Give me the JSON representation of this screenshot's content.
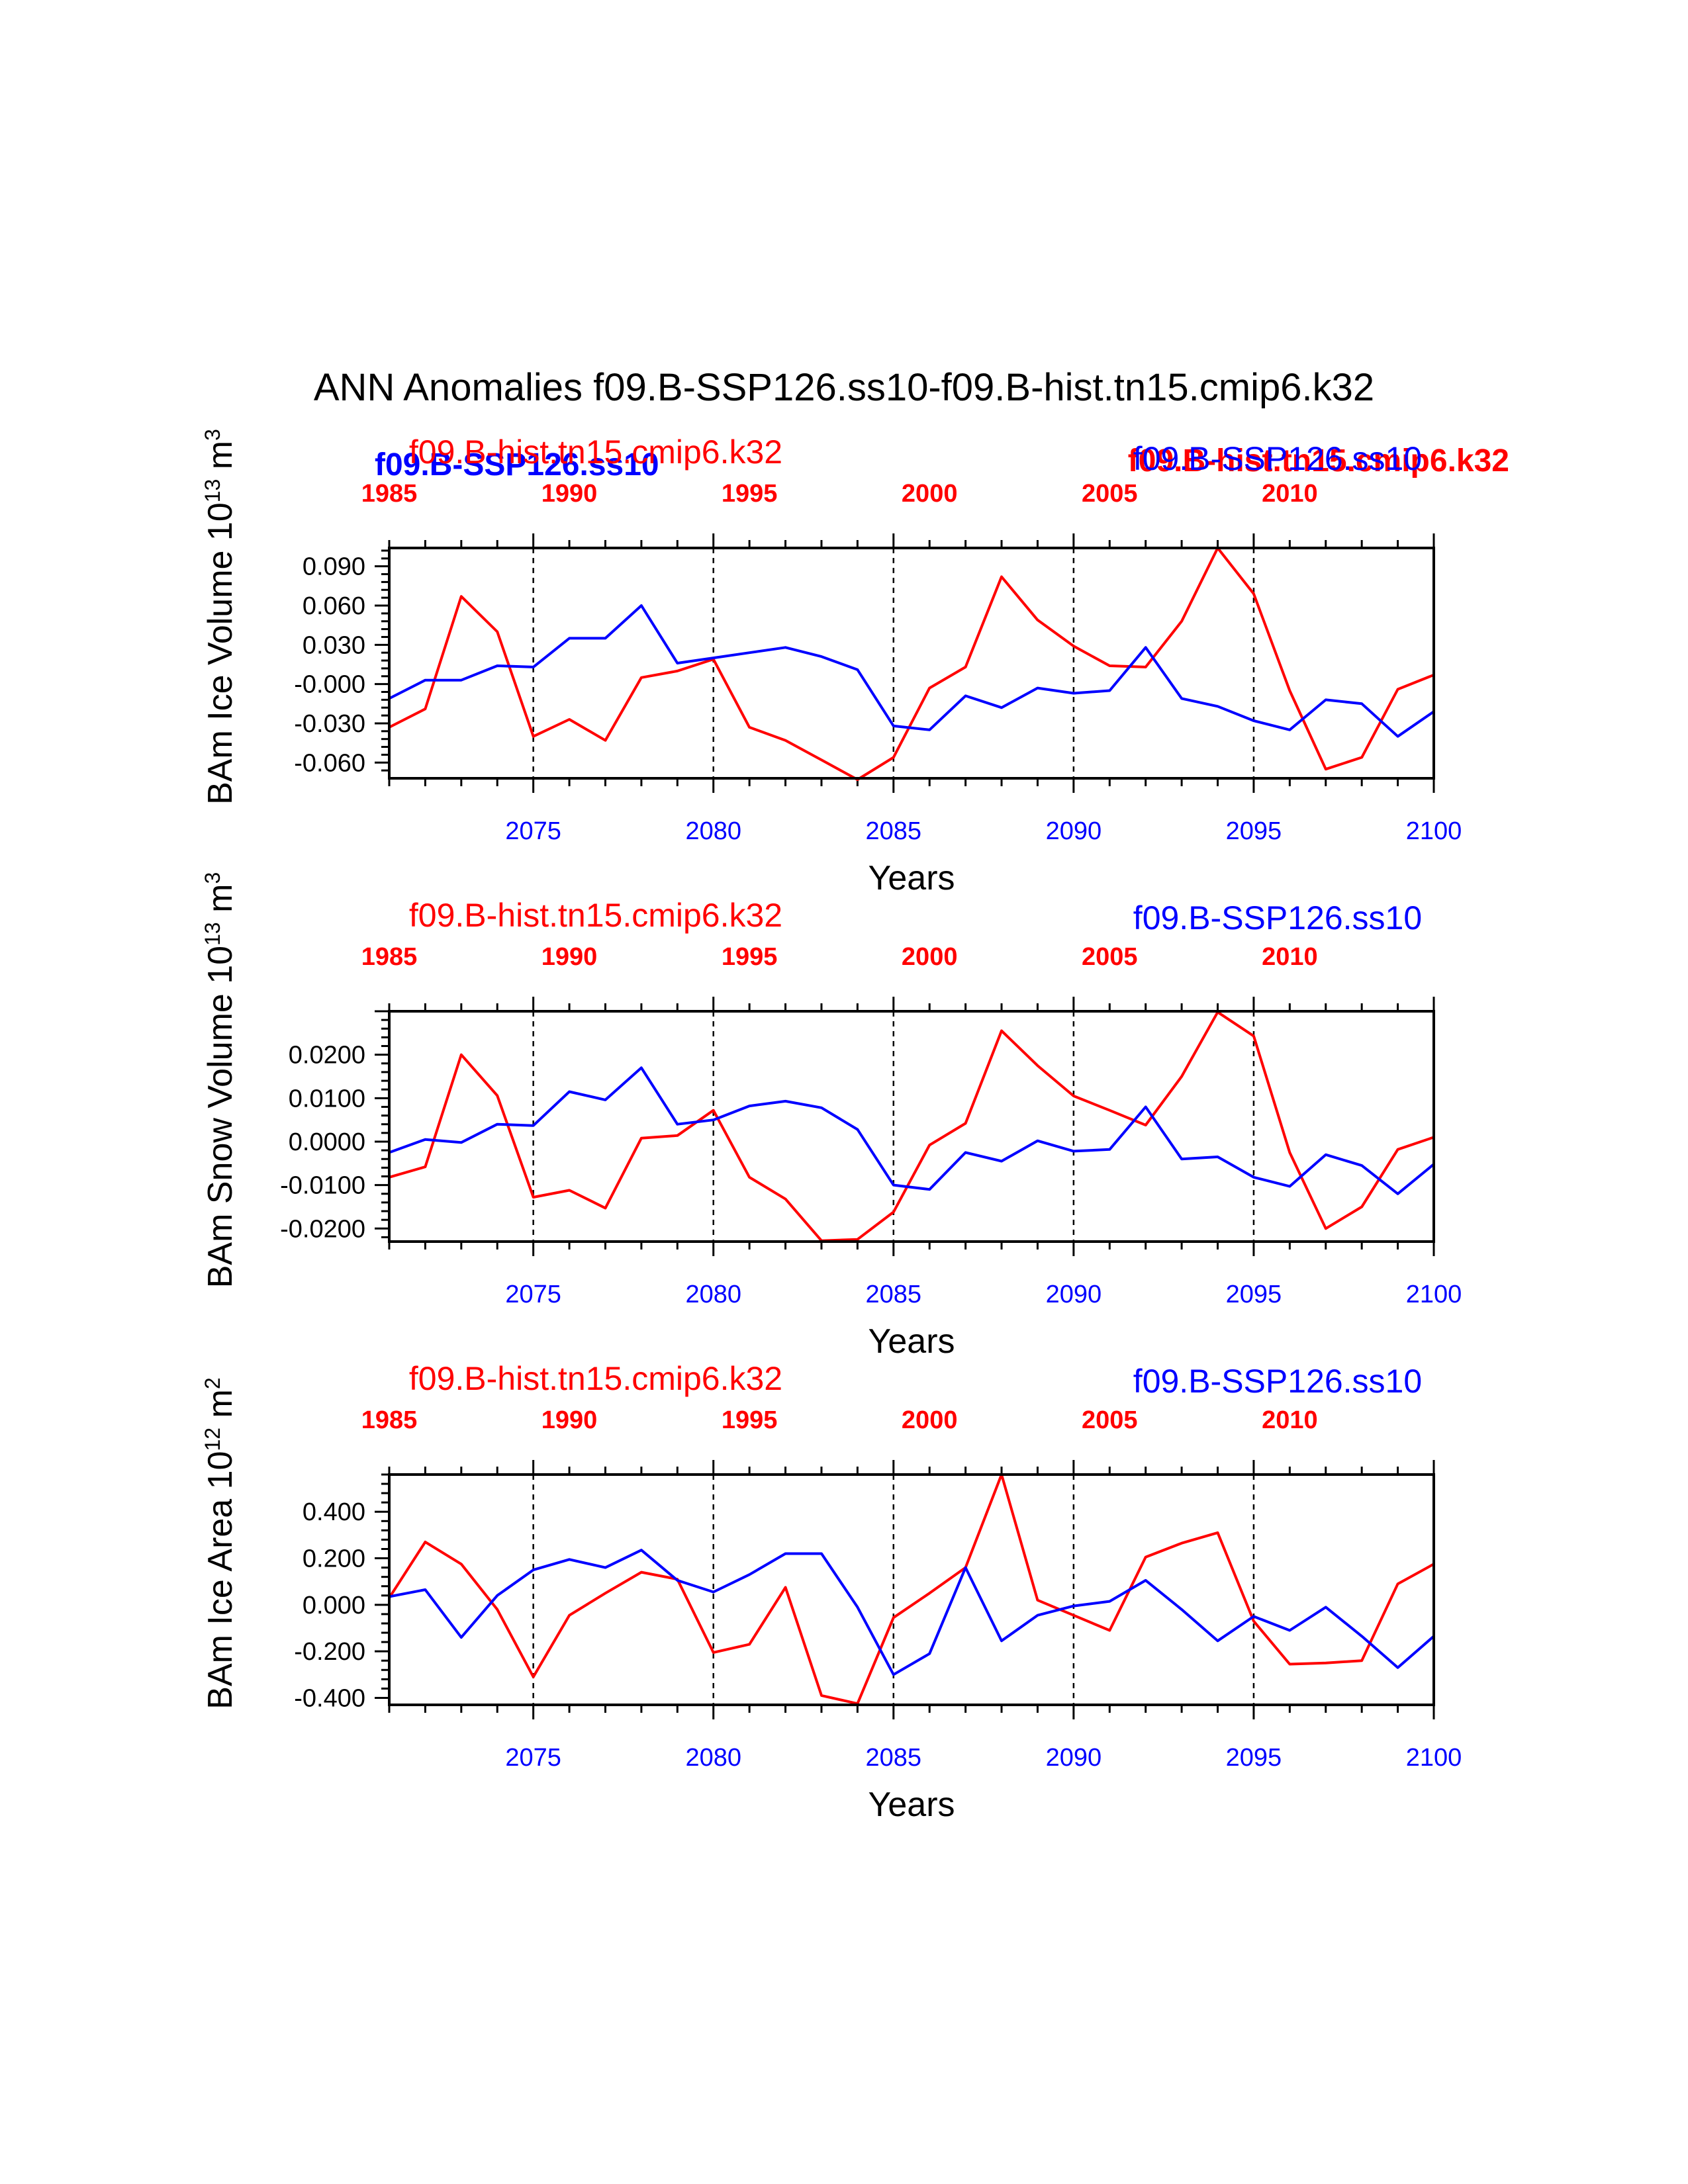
{
  "figure": {
    "title": "ANN Anomalies f09.B-SSP126.ss10-f09.B-hist.tn15.cmip6.k32"
  },
  "colors": {
    "hist": "#ff0000",
    "ssp": "#0000ff"
  },
  "overlap_labels": {
    "left_blue_bold": "f09.B-SSP126.ss10",
    "right_red_bold": "f09.B-hist.tn15.cmip6.k32"
  },
  "chart_data": [
    {
      "type": "line",
      "title_left": "f09.B-hist.tn15.cmip6.k32",
      "title_right": "f09.B-SSP126.ss10",
      "ylabel": "BAm Ice Volume 10",
      "ylabel_exp": "13",
      "ylabel_unit": " m",
      "ylabel_unit_exp": "3",
      "xlabel": "Years",
      "xlim": [
        2071,
        2100
      ],
      "ylim": [
        -0.072,
        0.104
      ],
      "yticks": [
        0.09,
        0.06,
        0.03,
        0.0,
        -0.03,
        -0.06
      ],
      "ytick_labels": [
        "0.090",
        "0.060",
        "0.030",
        "-0.000",
        "-0.030",
        "-0.060"
      ],
      "bottom_ticks": [
        2075,
        2080,
        2085,
        2090,
        2095,
        2100
      ],
      "top_ticks": [
        "1985",
        "1990",
        "1995",
        "2000",
        "2005",
        "2010"
      ],
      "x": [
        2071,
        2072,
        2073,
        2074,
        2075,
        2076,
        2077,
        2078,
        2079,
        2080,
        2081,
        2082,
        2083,
        2084,
        2085,
        2086,
        2087,
        2088,
        2089,
        2090,
        2091,
        2092,
        2093,
        2094,
        2095,
        2096,
        2097,
        2098,
        2099,
        2100
      ],
      "series": [
        {
          "name": "f09.B-hist.tn15.cmip6.k32",
          "color": "#ff0000",
          "values": [
            -0.033,
            -0.019,
            0.067,
            0.04,
            -0.04,
            -0.027,
            -0.043,
            0.005,
            0.01,
            0.019,
            -0.033,
            -0.043,
            -0.058,
            -0.073,
            -0.056,
            -0.003,
            0.013,
            0.082,
            0.049,
            0.029,
            0.014,
            0.013,
            0.048,
            0.104,
            0.069,
            -0.005,
            -0.065,
            -0.056,
            -0.004,
            0.007
          ]
        },
        {
          "name": "f09.B-SSP126.ss10",
          "color": "#0000ff",
          "values": [
            -0.011,
            0.003,
            0.003,
            0.014,
            0.013,
            0.035,
            0.035,
            0.06,
            0.016,
            0.02,
            0.024,
            0.028,
            0.021,
            0.011,
            -0.032,
            -0.035,
            -0.009,
            -0.018,
            -0.003,
            -0.007,
            -0.005,
            0.028,
            -0.011,
            -0.017,
            -0.028,
            -0.035,
            -0.012,
            -0.015,
            -0.04,
            -0.021
          ]
        }
      ]
    },
    {
      "type": "line",
      "title_left": "f09.B-hist.tn15.cmip6.k32",
      "title_right": "f09.B-SSP126.ss10",
      "ylabel": "BAm Snow Volume 10",
      "ylabel_exp": "13",
      "ylabel_unit": " m",
      "ylabel_unit_exp": "3",
      "xlabel": "Years",
      "xlim": [
        2071,
        2100
      ],
      "ylim": [
        -0.023,
        0.03
      ],
      "yticks": [
        0.02,
        0.01,
        0.0,
        -0.01,
        -0.02
      ],
      "ytick_labels": [
        "0.0200",
        "0.0100",
        "0.0000",
        "-0.0100",
        "-0.0200"
      ],
      "bottom_ticks": [
        2075,
        2080,
        2085,
        2090,
        2095,
        2100
      ],
      "top_ticks": [
        "1985",
        "1990",
        "1995",
        "2000",
        "2005",
        "2010"
      ],
      "x": [
        2071,
        2072,
        2073,
        2074,
        2075,
        2076,
        2077,
        2078,
        2079,
        2080,
        2081,
        2082,
        2083,
        2084,
        2085,
        2086,
        2087,
        2088,
        2089,
        2090,
        2091,
        2092,
        2093,
        2094,
        2095,
        2096,
        2097,
        2098,
        2099,
        2100
      ],
      "series": [
        {
          "name": "f09.B-hist.tn15.cmip6.k32",
          "color": "#ff0000",
          "values": [
            -0.0082,
            -0.0058,
            0.02,
            0.0106,
            -0.0128,
            -0.0112,
            -0.0153,
            0.0008,
            0.0014,
            0.0072,
            -0.0082,
            -0.0132,
            -0.0228,
            -0.0225,
            -0.0162,
            -0.0008,
            0.0042,
            0.0255,
            0.0175,
            0.0105,
            0.0072,
            0.0038,
            0.015,
            0.0298,
            0.0243,
            -0.0025,
            -0.02,
            -0.015,
            -0.0018,
            0.001
          ]
        },
        {
          "name": "f09.B-SSP126.ss10",
          "color": "#0000ff",
          "values": [
            -0.0025,
            0.0005,
            -0.0002,
            0.004,
            0.0037,
            0.0115,
            0.0096,
            0.017,
            0.004,
            0.005,
            0.0082,
            0.0093,
            0.0078,
            0.0028,
            -0.01,
            -0.011,
            -0.0025,
            -0.0045,
            0.0002,
            -0.0022,
            -0.0018,
            0.008,
            -0.004,
            -0.0035,
            -0.0082,
            -0.0103,
            -0.003,
            -0.0055,
            -0.012,
            -0.0052
          ]
        }
      ]
    },
    {
      "type": "line",
      "title_left": "f09.B-hist.tn15.cmip6.k32",
      "title_right": "f09.B-SSP126.ss10",
      "ylabel": "BAm Ice Area 10",
      "ylabel_exp": "12",
      "ylabel_unit": " m",
      "ylabel_unit_exp": "2",
      "xlabel": "Years",
      "xlim": [
        2071,
        2100
      ],
      "ylim": [
        -0.43,
        0.56
      ],
      "yticks": [
        0.4,
        0.2,
        0.0,
        -0.2,
        -0.4
      ],
      "ytick_labels": [
        "0.400",
        "0.200",
        "0.000",
        "-0.200",
        "-0.400"
      ],
      "bottom_ticks": [
        2075,
        2080,
        2085,
        2090,
        2095,
        2100
      ],
      "top_ticks": [
        "1985",
        "1990",
        "1995",
        "2000",
        "2005",
        "2010"
      ],
      "x": [
        2071,
        2072,
        2073,
        2074,
        2075,
        2076,
        2077,
        2078,
        2079,
        2080,
        2081,
        2082,
        2083,
        2084,
        2085,
        2086,
        2087,
        2088,
        2089,
        2090,
        2091,
        2092,
        2093,
        2094,
        2095,
        2096,
        2097,
        2098,
        2099,
        2100
      ],
      "series": [
        {
          "name": "f09.B-hist.tn15.cmip6.k32",
          "color": "#ff0000",
          "values": [
            0.03,
            0.27,
            0.175,
            -0.02,
            -0.31,
            -0.045,
            0.05,
            0.14,
            0.11,
            -0.205,
            -0.17,
            0.075,
            -0.39,
            -0.425,
            -0.055,
            0.05,
            0.16,
            0.56,
            0.02,
            -0.045,
            -0.11,
            0.205,
            0.265,
            0.31,
            -0.07,
            -0.255,
            -0.25,
            -0.24,
            0.09,
            0.175
          ]
        },
        {
          "name": "f09.B-SSP126.ss10",
          "color": "#0000ff",
          "values": [
            0.035,
            0.065,
            -0.14,
            0.04,
            0.15,
            0.195,
            0.16,
            0.235,
            0.105,
            0.055,
            0.13,
            0.22,
            0.22,
            -0.01,
            -0.3,
            -0.21,
            0.16,
            -0.155,
            -0.045,
            -0.005,
            0.015,
            0.105,
            -0.02,
            -0.155,
            -0.05,
            -0.11,
            -0.01,
            -0.135,
            -0.27,
            -0.135
          ]
        }
      ]
    }
  ]
}
